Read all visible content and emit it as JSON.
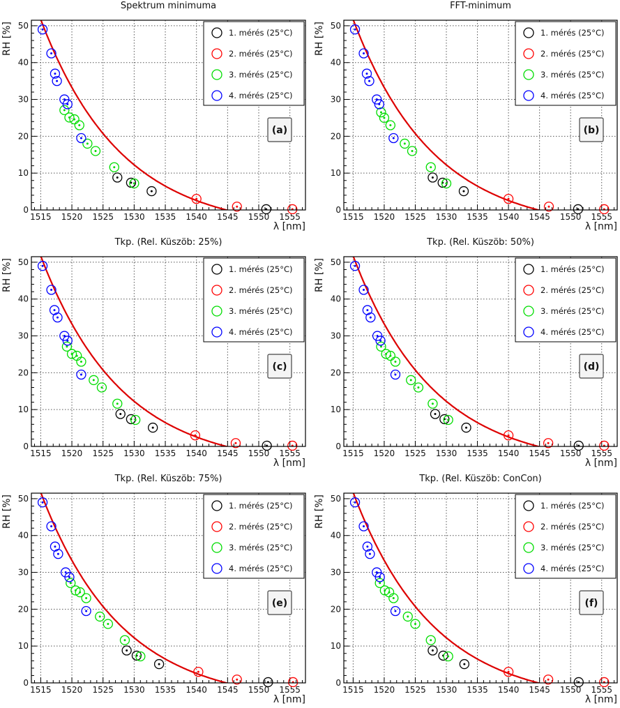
{
  "chart_data": [
    {
      "type": "scatter",
      "title": "Spektrum minimuma",
      "panel_label": "(a)",
      "xlabel": "λ [nm]",
      "ylabel": "RH [%]",
      "xlim": [
        1513.5,
        1557.5
      ],
      "ylim": [
        0,
        51.5
      ],
      "xticks": [
        1515,
        1520,
        1525,
        1530,
        1535,
        1540,
        1545,
        1550,
        1555
      ],
      "yticks": [
        0,
        10,
        20,
        30,
        40,
        50
      ],
      "grid": true,
      "legend_position": "top-right",
      "fit": {
        "name": "fit",
        "color": "#dd0000"
      },
      "series": [
        {
          "name": "1. mérés (25°C)",
          "color": "#000000",
          "x": [
            1527.3,
            1529.5,
            1532.8,
            1551.2
          ],
          "y": [
            8.8,
            7.4,
            5.1,
            0.2
          ]
        },
        {
          "name": "2. mérés (25°C)",
          "color": "#ff0000",
          "x": [
            1540.0,
            1546.5,
            1555.4
          ],
          "y": [
            3.0,
            0.9,
            0.2
          ]
        },
        {
          "name": "3. mérés (25°C)",
          "color": "#00dd00",
          "x": [
            1518.8,
            1519.6,
            1520.4,
            1521.2,
            1522.5,
            1523.8,
            1526.8,
            1530.0
          ],
          "y": [
            27.1,
            25.1,
            24.6,
            23.0,
            18.0,
            16.0,
            11.6,
            7.2
          ]
        },
        {
          "name": "4. mérés (25°C)",
          "color": "#0000ff",
          "x": [
            1515.3,
            1516.7,
            1517.3,
            1517.6,
            1518.8,
            1519.3,
            1521.5
          ],
          "y": [
            49.0,
            42.5,
            37.0,
            35.0,
            30.0,
            28.7,
            19.5
          ]
        }
      ]
    },
    {
      "type": "scatter",
      "title": "FFT-minimum",
      "panel_label": "(b)",
      "xlabel": "λ [nm]",
      "ylabel": "RH [%]",
      "xlim": [
        1513.5,
        1557.5
      ],
      "ylim": [
        0,
        51.5
      ],
      "xticks": [
        1515,
        1520,
        1525,
        1530,
        1535,
        1540,
        1545,
        1550,
        1555
      ],
      "yticks": [
        0,
        10,
        20,
        30,
        40,
        50
      ],
      "grid": true,
      "legend_position": "top-right",
      "fit": {
        "name": "fit",
        "color": "#dd0000"
      },
      "series": [
        {
          "name": "1. mérés (25°C)",
          "color": "#000000",
          "x": [
            1527.8,
            1529.4,
            1532.8,
            1551.2
          ],
          "y": [
            8.8,
            7.4,
            5.1,
            0.2
          ]
        },
        {
          "name": "2. mérés (25°C)",
          "color": "#ff0000",
          "x": [
            1540.0,
            1546.5,
            1555.4
          ],
          "y": [
            3.0,
            0.9,
            0.2
          ]
        },
        {
          "name": "3. mérés (25°C)",
          "color": "#00dd00",
          "x": [
            1519.5,
            1520.0,
            1521.0,
            1523.3,
            1524.5,
            1527.5,
            1530.0
          ],
          "y": [
            26.5,
            25.0,
            23.0,
            18.0,
            16.0,
            11.6,
            7.2
          ]
        },
        {
          "name": "4. mérés (25°C)",
          "color": "#0000ff",
          "x": [
            1515.3,
            1516.7,
            1517.2,
            1517.6,
            1518.8,
            1519.2,
            1521.5
          ],
          "y": [
            49.0,
            42.5,
            37.0,
            35.0,
            30.0,
            28.7,
            19.5
          ]
        }
      ]
    },
    {
      "type": "scatter",
      "title": "Tkp. (Rel. Küszöb: 25%)",
      "panel_label": "(c)",
      "xlabel": "λ [nm]",
      "ylabel": "RH [%]",
      "xlim": [
        1513.5,
        1557.5
      ],
      "ylim": [
        0,
        51.5
      ],
      "xticks": [
        1515,
        1520,
        1525,
        1530,
        1535,
        1540,
        1545,
        1550,
        1555
      ],
      "yticks": [
        0,
        10,
        20,
        30,
        40,
        50
      ],
      "grid": true,
      "legend_position": "top-right",
      "fit": {
        "name": "fit",
        "color": "#dd0000"
      },
      "series": [
        {
          "name": "1. mérés (25°C)",
          "color": "#000000",
          "x": [
            1527.8,
            1529.5,
            1533.0,
            1551.3
          ],
          "y": [
            8.8,
            7.4,
            5.1,
            0.2
          ]
        },
        {
          "name": "2. mérés (25°C)",
          "color": "#ff0000",
          "x": [
            1539.8,
            1546.3,
            1555.4
          ],
          "y": [
            3.0,
            0.9,
            0.2
          ]
        },
        {
          "name": "3. mérés (25°C)",
          "color": "#00dd00",
          "x": [
            1519.2,
            1520.0,
            1520.8,
            1521.5,
            1523.5,
            1524.8,
            1527.3,
            1530.2
          ],
          "y": [
            27.1,
            25.1,
            24.6,
            23.0,
            18.0,
            16.0,
            11.6,
            7.2
          ]
        },
        {
          "name": "4. mérés (25°C)",
          "color": "#0000ff",
          "x": [
            1515.3,
            1516.7,
            1517.2,
            1517.7,
            1518.8,
            1519.3,
            1521.5
          ],
          "y": [
            49.0,
            42.5,
            37.0,
            35.0,
            30.0,
            28.7,
            19.5
          ]
        }
      ]
    },
    {
      "type": "scatter",
      "title": "Tkp. (Rel. Küszöb: 50%)",
      "panel_label": "(d)",
      "xlabel": "λ [nm]",
      "ylabel": "RH [%]",
      "xlim": [
        1513.5,
        1557.5
      ],
      "ylim": [
        0,
        51.5
      ],
      "xticks": [
        1515,
        1520,
        1525,
        1530,
        1535,
        1540,
        1545,
        1550,
        1555
      ],
      "yticks": [
        0,
        10,
        20,
        30,
        40,
        50
      ],
      "grid": true,
      "legend_position": "top-right",
      "fit": {
        "name": "fit",
        "color": "#dd0000"
      },
      "series": [
        {
          "name": "1. mérés (25°C)",
          "color": "#000000",
          "x": [
            1528.2,
            1529.7,
            1533.2,
            1551.3
          ],
          "y": [
            8.8,
            7.4,
            5.1,
            0.2
          ]
        },
        {
          "name": "2. mérés (25°C)",
          "color": "#ff0000",
          "x": [
            1540.0,
            1546.4,
            1555.4
          ],
          "y": [
            3.0,
            0.9,
            0.2
          ]
        },
        {
          "name": "3. mérés (25°C)",
          "color": "#00dd00",
          "x": [
            1519.5,
            1520.3,
            1521.0,
            1521.8,
            1524.3,
            1525.5,
            1527.8,
            1530.3
          ],
          "y": [
            27.1,
            25.1,
            24.6,
            23.0,
            18.0,
            16.0,
            11.6,
            7.2
          ]
        },
        {
          "name": "4. mérés (25°C)",
          "color": "#0000ff",
          "x": [
            1515.3,
            1516.7,
            1517.3,
            1517.8,
            1518.9,
            1519.4,
            1521.8
          ],
          "y": [
            49.0,
            42.5,
            37.0,
            35.0,
            30.0,
            28.7,
            19.5
          ]
        }
      ]
    },
    {
      "type": "scatter",
      "title": "Tkp. (Rel. Küszöb: 75%)",
      "panel_label": "(e)",
      "xlabel": "λ [nm]",
      "ylabel": "RH [%]",
      "xlim": [
        1513.5,
        1557.5
      ],
      "ylim": [
        0,
        51.5
      ],
      "xticks": [
        1515,
        1520,
        1525,
        1530,
        1535,
        1540,
        1545,
        1550,
        1555
      ],
      "yticks": [
        0,
        10,
        20,
        30,
        40,
        50
      ],
      "grid": true,
      "legend_position": "top-right",
      "fit": {
        "name": "fit",
        "color": "#dd0000"
      },
      "series": [
        {
          "name": "1. mérés (25°C)",
          "color": "#000000",
          "x": [
            1528.8,
            1530.4,
            1534.0,
            1551.5
          ],
          "y": [
            8.8,
            7.4,
            5.1,
            0.2
          ]
        },
        {
          "name": "2. mérés (25°C)",
          "color": "#ff0000",
          "x": [
            1540.3,
            1546.5,
            1555.5
          ],
          "y": [
            3.0,
            0.9,
            0.2
          ]
        },
        {
          "name": "3. mérés (25°C)",
          "color": "#00dd00",
          "x": [
            1519.8,
            1520.6,
            1521.3,
            1522.3,
            1524.5,
            1525.8,
            1528.5,
            1531.0
          ],
          "y": [
            27.1,
            25.1,
            24.6,
            23.0,
            18.0,
            16.0,
            11.6,
            7.2
          ]
        },
        {
          "name": "4. mérés (25°C)",
          "color": "#0000ff",
          "x": [
            1515.3,
            1516.7,
            1517.3,
            1517.8,
            1519.0,
            1519.6,
            1522.3
          ],
          "y": [
            49.0,
            42.5,
            37.0,
            35.0,
            30.0,
            28.7,
            19.5
          ]
        }
      ]
    },
    {
      "type": "scatter",
      "title": "Tkp. (Rel. Küszöb: ConCon)",
      "panel_label": "(f)",
      "xlabel": "λ [nm]",
      "ylabel": "RH [%]",
      "xlim": [
        1513.5,
        1557.5
      ],
      "ylim": [
        0,
        51.5
      ],
      "xticks": [
        1515,
        1520,
        1525,
        1530,
        1535,
        1540,
        1545,
        1550,
        1555
      ],
      "yticks": [
        0,
        10,
        20,
        30,
        40,
        50
      ],
      "grid": true,
      "legend_position": "top-right",
      "fit": {
        "name": "fit",
        "color": "#dd0000"
      },
      "series": [
        {
          "name": "1. mérés (25°C)",
          "color": "#000000",
          "x": [
            1527.8,
            1529.5,
            1532.9,
            1551.3
          ],
          "y": [
            8.8,
            7.4,
            5.1,
            0.2
          ]
        },
        {
          "name": "2. mérés (25°C)",
          "color": "#ff0000",
          "x": [
            1540.0,
            1546.4,
            1555.4
          ],
          "y": [
            3.0,
            0.9,
            0.2
          ]
        },
        {
          "name": "3. mérés (25°C)",
          "color": "#00dd00",
          "x": [
            1519.3,
            1520.1,
            1520.8,
            1521.5,
            1523.8,
            1525.0,
            1527.5,
            1530.3
          ],
          "y": [
            27.1,
            25.1,
            24.6,
            23.0,
            18.0,
            16.0,
            11.6,
            7.2
          ]
        },
        {
          "name": "4. mérés (25°C)",
          "color": "#0000ff",
          "x": [
            1515.3,
            1516.7,
            1517.3,
            1517.7,
            1518.8,
            1519.3,
            1521.8
          ],
          "y": [
            49.0,
            42.5,
            37.0,
            35.0,
            30.0,
            28.7,
            19.5
          ]
        }
      ]
    }
  ]
}
